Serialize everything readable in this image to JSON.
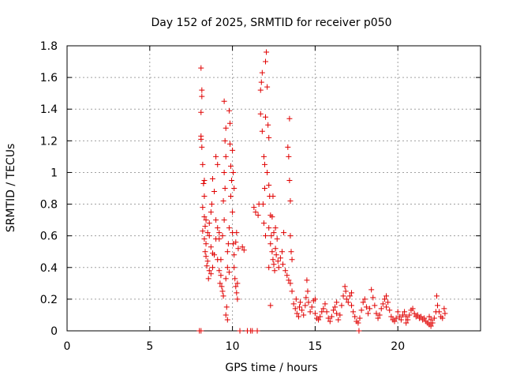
{
  "chart_data": {
    "type": "scatter",
    "title": "Day 152 of 2025, SRMTID for receiver p050",
    "xlabel": "GPS time / hours",
    "ylabel": "SRMTID / TECUs",
    "xlim": [
      0,
      25
    ],
    "ylim": [
      0,
      1.8
    ],
    "x_ticks": [
      0,
      5,
      10,
      15,
      20
    ],
    "x_tick_labels": [
      "0",
      "5",
      "10",
      "15",
      "20"
    ],
    "y_ticks": [
      0,
      0.2,
      0.4,
      0.6,
      0.8,
      1.0,
      1.2,
      1.4,
      1.6,
      1.8
    ],
    "y_tick_labels": [
      "0",
      "0.2",
      "0.4",
      "0.6",
      "0.8",
      "1",
      "1.2",
      "1.4",
      "1.6",
      "1.8"
    ],
    "grid": true,
    "marker": "+",
    "color": "#e00000",
    "series": [
      {
        "name": "p050",
        "points": [
          [
            8.0,
            0.0
          ],
          [
            8.1,
            0.0
          ],
          [
            8.1,
            1.66
          ],
          [
            8.15,
            1.52
          ],
          [
            8.15,
            1.48
          ],
          [
            8.1,
            1.38
          ],
          [
            8.1,
            1.23
          ],
          [
            8.1,
            1.21
          ],
          [
            8.15,
            1.16
          ],
          [
            8.2,
            1.05
          ],
          [
            8.25,
            0.93
          ],
          [
            8.3,
            0.85
          ],
          [
            8.2,
            0.78
          ],
          [
            8.3,
            0.72
          ],
          [
            8.35,
            0.66
          ],
          [
            8.2,
            0.63
          ],
          [
            8.3,
            0.58
          ],
          [
            8.4,
            0.55
          ],
          [
            8.35,
            0.5
          ],
          [
            8.4,
            0.47
          ],
          [
            8.5,
            0.44
          ],
          [
            8.45,
            0.41
          ],
          [
            8.6,
            0.38
          ],
          [
            8.5,
            0.62
          ],
          [
            8.6,
            0.68
          ],
          [
            8.7,
            0.75
          ],
          [
            8.6,
            0.6
          ],
          [
            8.7,
            0.53
          ],
          [
            8.8,
            0.49
          ],
          [
            8.75,
            0.8
          ],
          [
            8.9,
            0.88
          ],
          [
            8.8,
            0.96
          ],
          [
            9.0,
            1.1
          ],
          [
            9.1,
            1.05
          ],
          [
            9.0,
            0.7
          ],
          [
            9.1,
            0.65
          ],
          [
            9.2,
            0.58
          ],
          [
            9.1,
            0.45
          ],
          [
            9.2,
            0.38
          ],
          [
            9.3,
            0.35
          ],
          [
            9.25,
            0.3
          ],
          [
            9.35,
            0.28
          ],
          [
            9.4,
            0.25
          ],
          [
            9.45,
            0.22
          ],
          [
            9.4,
            0.6
          ],
          [
            9.5,
            0.7
          ],
          [
            9.45,
            0.82
          ],
          [
            9.55,
            0.9
          ],
          [
            9.5,
            1.0
          ],
          [
            9.6,
            1.1
          ],
          [
            9.5,
            1.45
          ],
          [
            9.6,
            1.28
          ],
          [
            9.55,
            1.2
          ],
          [
            9.6,
            0.1
          ],
          [
            9.7,
            0.07
          ],
          [
            9.65,
            0.15
          ],
          [
            9.7,
            0.4
          ],
          [
            9.75,
            0.55
          ],
          [
            9.8,
            0.65
          ],
          [
            9.8,
            1.39
          ],
          [
            9.85,
            1.31
          ],
          [
            9.85,
            1.18
          ],
          [
            9.9,
            1.04
          ],
          [
            9.95,
            0.95
          ],
          [
            9.9,
            0.85
          ],
          [
            10.0,
            0.75
          ],
          [
            10.0,
            0.62
          ],
          [
            10.05,
            0.55
          ],
          [
            10.1,
            0.48
          ],
          [
            10.1,
            0.4
          ],
          [
            10.15,
            0.33
          ],
          [
            10.2,
            0.28
          ],
          [
            10.25,
            0.24
          ],
          [
            10.3,
            0.2
          ],
          [
            10.3,
            0.3
          ],
          [
            10.2,
            0.56
          ],
          [
            10.35,
            0.52
          ],
          [
            10.25,
            0.62
          ],
          [
            10.1,
            0.9
          ],
          [
            10.05,
            1.0
          ],
          [
            10.0,
            1.14
          ],
          [
            9.8,
            0.37
          ],
          [
            9.7,
            0.5
          ],
          [
            9.6,
            0.33
          ],
          [
            9.3,
            0.45
          ],
          [
            9.2,
            0.62
          ],
          [
            9.0,
            0.58
          ],
          [
            8.9,
            0.48
          ],
          [
            8.8,
            0.4
          ],
          [
            8.7,
            0.36
          ],
          [
            8.55,
            0.33
          ],
          [
            8.4,
            0.7
          ],
          [
            8.3,
            0.95
          ],
          [
            10.45,
            0.0
          ],
          [
            10.9,
            0.0
          ],
          [
            11.1,
            0.0
          ],
          [
            11.2,
            0.0
          ],
          [
            11.5,
            0.0
          ],
          [
            10.6,
            0.53
          ],
          [
            10.7,
            0.51
          ],
          [
            11.3,
            0.78
          ],
          [
            11.4,
            0.75
          ],
          [
            11.55,
            0.73
          ],
          [
            11.6,
            0.8
          ],
          [
            11.7,
            1.37
          ],
          [
            11.75,
            1.57
          ],
          [
            11.8,
            1.63
          ],
          [
            11.7,
            1.52
          ],
          [
            11.8,
            1.26
          ],
          [
            11.9,
            1.1
          ],
          [
            11.95,
            1.05
          ],
          [
            12.0,
            1.7
          ],
          [
            12.05,
            1.76
          ],
          [
            12.1,
            1.54
          ],
          [
            12.0,
            1.35
          ],
          [
            12.15,
            1.3
          ],
          [
            12.2,
            1.22
          ],
          [
            12.1,
            1.0
          ],
          [
            12.2,
            0.92
          ],
          [
            12.25,
            0.85
          ],
          [
            12.3,
            0.73
          ],
          [
            12.2,
            0.65
          ],
          [
            12.35,
            0.6
          ],
          [
            12.3,
            0.55
          ],
          [
            12.4,
            0.5
          ],
          [
            12.45,
            0.45
          ],
          [
            12.5,
            0.42
          ],
          [
            12.55,
            0.38
          ],
          [
            12.6,
            0.52
          ],
          [
            12.65,
            0.48
          ],
          [
            12.7,
            0.58
          ],
          [
            12.75,
            0.44
          ],
          [
            12.8,
            0.4
          ],
          [
            12.9,
            0.46
          ],
          [
            13.0,
            0.5
          ],
          [
            13.05,
            0.42
          ],
          [
            13.1,
            0.62
          ],
          [
            13.2,
            0.38
          ],
          [
            13.3,
            0.35
          ],
          [
            13.4,
            0.32
          ],
          [
            13.45,
            1.34
          ],
          [
            13.35,
            1.16
          ],
          [
            13.4,
            1.1
          ],
          [
            13.45,
            0.95
          ],
          [
            13.5,
            0.82
          ],
          [
            13.5,
            0.6
          ],
          [
            13.55,
            0.5
          ],
          [
            13.6,
            0.45
          ],
          [
            13.5,
            0.3
          ],
          [
            13.6,
            0.25
          ],
          [
            12.4,
            0.72
          ],
          [
            12.45,
            0.85
          ],
          [
            12.2,
            0.4
          ],
          [
            12.0,
            0.6
          ],
          [
            11.9,
            0.68
          ],
          [
            11.85,
            0.8
          ],
          [
            11.95,
            0.9
          ],
          [
            12.3,
            0.16
          ],
          [
            12.5,
            0.62
          ],
          [
            12.6,
            0.65
          ],
          [
            13.7,
            0.17
          ],
          [
            13.8,
            0.14
          ],
          [
            13.85,
            0.2
          ],
          [
            13.9,
            0.11
          ],
          [
            14.0,
            0.09
          ],
          [
            14.05,
            0.15
          ],
          [
            14.1,
            0.18
          ],
          [
            14.2,
            0.13
          ],
          [
            14.3,
            0.1
          ],
          [
            14.4,
            0.16
          ],
          [
            14.45,
            0.21
          ],
          [
            14.5,
            0.32
          ],
          [
            14.55,
            0.25
          ],
          [
            14.6,
            0.18
          ],
          [
            14.7,
            0.12
          ],
          [
            14.8,
            0.15
          ],
          [
            14.9,
            0.19
          ],
          [
            15.0,
            0.11
          ],
          [
            15.1,
            0.08
          ],
          [
            15.2,
            0.07
          ],
          [
            15.3,
            0.09
          ],
          [
            15.4,
            0.12
          ],
          [
            15.5,
            0.14
          ],
          [
            15.6,
            0.17
          ],
          [
            15.7,
            0.12
          ],
          [
            15.8,
            0.08
          ],
          [
            15.9,
            0.06
          ],
          [
            16.0,
            0.09
          ],
          [
            16.1,
            0.13
          ],
          [
            16.2,
            0.15
          ],
          [
            16.3,
            0.11
          ],
          [
            16.4,
            0.07
          ],
          [
            16.5,
            0.1
          ],
          [
            16.6,
            0.16
          ],
          [
            16.7,
            0.22
          ],
          [
            16.8,
            0.28
          ],
          [
            16.85,
            0.25
          ],
          [
            16.9,
            0.2
          ],
          [
            17.0,
            0.18
          ],
          [
            17.1,
            0.22
          ],
          [
            17.2,
            0.16
          ],
          [
            17.3,
            0.12
          ],
          [
            17.4,
            0.09
          ],
          [
            17.5,
            0.06
          ],
          [
            17.6,
            0.05
          ],
          [
            17.65,
            0.0
          ],
          [
            17.7,
            0.08
          ],
          [
            17.8,
            0.13
          ],
          [
            17.9,
            0.18
          ],
          [
            18.0,
            0.2
          ],
          [
            18.1,
            0.15
          ],
          [
            18.2,
            0.11
          ],
          [
            18.3,
            0.14
          ],
          [
            18.4,
            0.26
          ],
          [
            18.5,
            0.21
          ],
          [
            18.6,
            0.16
          ],
          [
            18.7,
            0.11
          ],
          [
            18.8,
            0.08
          ],
          [
            18.9,
            0.1
          ],
          [
            19.0,
            0.14
          ],
          [
            19.1,
            0.17
          ],
          [
            19.2,
            0.2
          ],
          [
            19.3,
            0.22
          ],
          [
            19.4,
            0.18
          ],
          [
            19.5,
            0.13
          ],
          [
            19.6,
            0.09
          ],
          [
            19.7,
            0.07
          ],
          [
            19.8,
            0.06
          ],
          [
            19.9,
            0.08
          ],
          [
            20.0,
            0.12
          ],
          [
            20.1,
            0.09
          ],
          [
            20.2,
            0.07
          ],
          [
            20.3,
            0.1
          ],
          [
            20.4,
            0.12
          ],
          [
            20.5,
            0.09
          ],
          [
            20.6,
            0.07
          ],
          [
            20.7,
            0.1
          ],
          [
            20.8,
            0.13
          ],
          [
            20.9,
            0.14
          ],
          [
            21.0,
            0.11
          ],
          [
            21.1,
            0.09
          ],
          [
            21.2,
            0.1
          ],
          [
            21.3,
            0.08
          ],
          [
            21.4,
            0.09
          ],
          [
            21.5,
            0.07
          ],
          [
            21.6,
            0.08
          ],
          [
            21.7,
            0.06
          ],
          [
            21.8,
            0.05
          ],
          [
            21.9,
            0.09
          ],
          [
            22.0,
            0.07
          ],
          [
            22.1,
            0.05
          ],
          [
            22.2,
            0.08
          ],
          [
            22.3,
            0.12
          ],
          [
            22.35,
            0.22
          ],
          [
            22.4,
            0.16
          ],
          [
            22.5,
            0.12
          ],
          [
            22.6,
            0.09
          ],
          [
            22.7,
            0.08
          ],
          [
            22.8,
            0.14
          ],
          [
            22.85,
            0.11
          ],
          [
            22.0,
            0.03
          ],
          [
            21.9,
            0.04
          ],
          [
            15.0,
            0.2
          ],
          [
            16.3,
            0.18
          ],
          [
            17.2,
            0.24
          ],
          [
            19.3,
            0.15
          ],
          [
            20.5,
            0.05
          ]
        ]
      }
    ]
  }
}
